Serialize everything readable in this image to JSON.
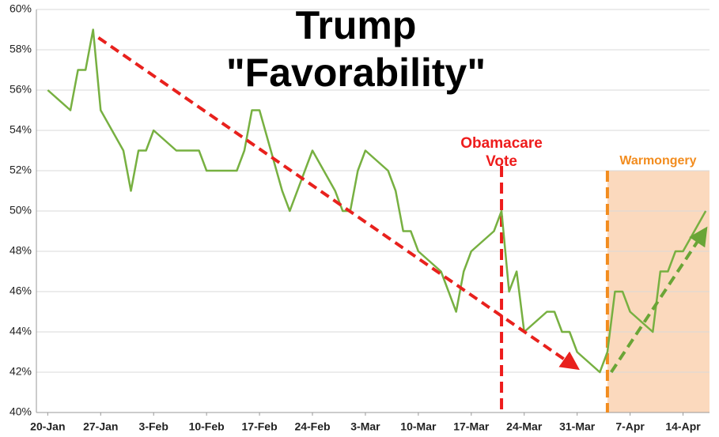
{
  "chart_data": {
    "type": "line",
    "title": [
      "Trump",
      "\"Favorability\""
    ],
    "x": [
      0,
      3,
      4,
      5,
      6,
      7,
      10,
      11,
      12,
      13,
      14,
      17,
      20,
      21,
      25,
      26,
      27,
      28,
      31,
      32,
      35,
      38,
      39,
      40,
      41,
      42,
      45,
      46,
      47,
      48,
      49,
      52,
      54,
      55,
      56,
      59,
      60,
      61,
      62,
      63,
      66,
      67,
      68,
      69,
      70,
      73,
      74,
      75,
      76,
      77,
      80,
      81,
      82,
      83,
      84,
      87
    ],
    "series": [
      {
        "color": "#77b041",
        "values": [
          56,
          55,
          57,
          57,
          59,
          55,
          53,
          51,
          53,
          53,
          54,
          53,
          53,
          52,
          52,
          53,
          55,
          55,
          51,
          50,
          53,
          51,
          50,
          50,
          52,
          53,
          52,
          51,
          49,
          49,
          48,
          47,
          45,
          47,
          48,
          49,
          50,
          46,
          47,
          44,
          45,
          45,
          44,
          44,
          43,
          42,
          43,
          46,
          46,
          45,
          44,
          47,
          47,
          48,
          48,
          50
        ]
      }
    ],
    "xlim": [
      -1.5,
      87.5
    ],
    "xticks": [
      {
        "value": 0,
        "label": "20-Jan"
      },
      {
        "value": 7,
        "label": "27-Jan"
      },
      {
        "value": 14,
        "label": "3-Feb"
      },
      {
        "value": 21,
        "label": "10-Feb"
      },
      {
        "value": 28,
        "label": "17-Feb"
      },
      {
        "value": 35,
        "label": "24-Feb"
      },
      {
        "value": 42,
        "label": "3-Mar"
      },
      {
        "value": 49,
        "label": "10-Mar"
      },
      {
        "value": 56,
        "label": "17-Mar"
      },
      {
        "value": 63,
        "label": "24-Mar"
      },
      {
        "value": 70,
        "label": "31-Mar"
      },
      {
        "value": 77,
        "label": "7-Apr"
      },
      {
        "value": 84,
        "label": "14-Apr"
      }
    ],
    "ylim": [
      40,
      60
    ],
    "yticks": [
      {
        "value": 40,
        "label": "40%"
      },
      {
        "value": 42,
        "label": "42%"
      },
      {
        "value": 44,
        "label": "44%"
      },
      {
        "value": 46,
        "label": "46%"
      },
      {
        "value": 48,
        "label": "48%"
      },
      {
        "value": 50,
        "label": "50%"
      },
      {
        "value": 52,
        "label": "52%"
      },
      {
        "value": 54,
        "label": "54%"
      },
      {
        "value": 56,
        "label": "56%"
      },
      {
        "value": 58,
        "label": "58%"
      },
      {
        "value": 60,
        "label": "60%"
      }
    ],
    "grid": true,
    "annotations": [
      {
        "lines": [
          "Obamacare",
          "Vote"
        ],
        "x": 60,
        "color": "#ee1c1c"
      },
      {
        "lines": [
          "Warmongery"
        ],
        "x": 74,
        "color": "#f28c1e",
        "shade_ylim": [
          40,
          52
        ],
        "shade_color": "#fbd9bd"
      }
    ],
    "trends": [
      {
        "x": [
          6.7,
          70
        ],
        "y": [
          58.6,
          42.2
        ],
        "color": "#e8211d"
      },
      {
        "x": [
          74.5,
          87
        ],
        "y": [
          42,
          49.1
        ],
        "color": "#6aa536"
      }
    ]
  }
}
